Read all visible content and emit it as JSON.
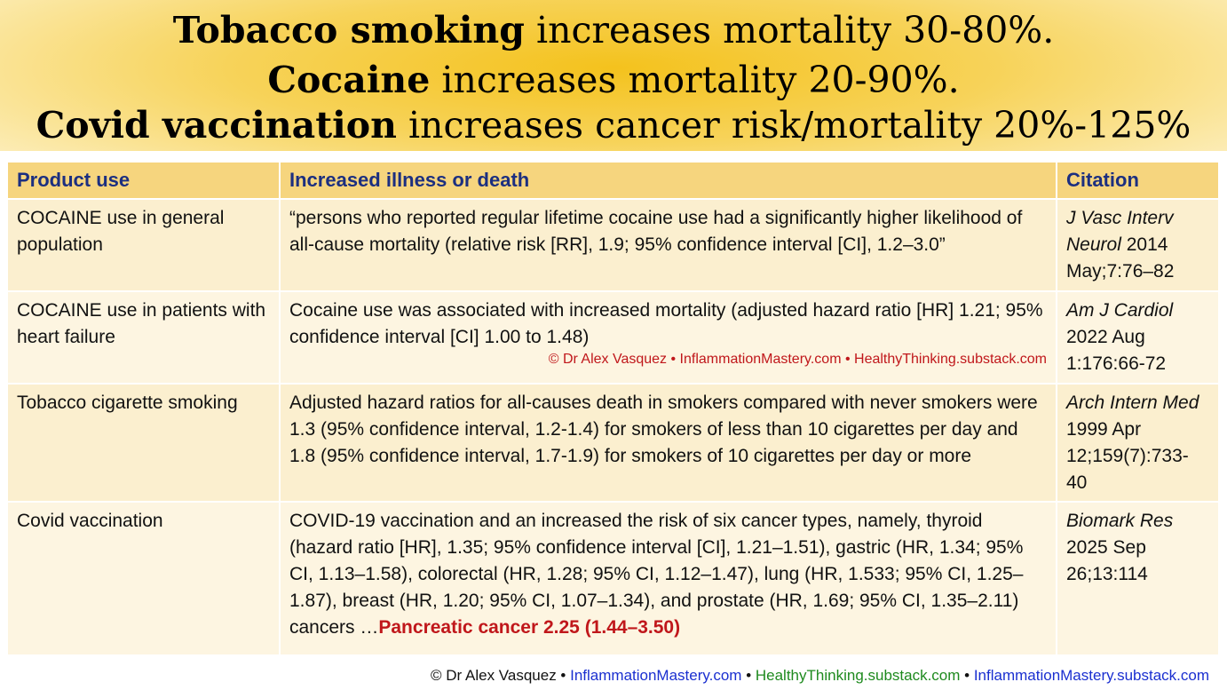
{
  "banner": {
    "l1_bold": "Tobacco smoking",
    "l1_rest": " increases mortality 30-80%.",
    "l2_bold": "Cocaine",
    "l2_rest": " increases mortality 20-90%.",
    "l3_bold": "Covid vaccination",
    "l3_rest": " increases cancer risk/mortality 20%-125%"
  },
  "table": {
    "headers": [
      "Product use",
      "Increased illness or death",
      "Citation"
    ],
    "rows": [
      {
        "product": "COCAINE use in general population",
        "effect": "“persons who reported regular lifetime cocaine use had a significantly higher likelihood of all-cause mortality (relative risk [RR], 1.9; 95% confidence interval [CI], 1.2–3.0”",
        "citation_italic": "J Vasc Interv Neurol",
        "citation_rest": " 2014 May;7:76–82"
      },
      {
        "product": "COCAINE use in patients with heart failure",
        "effect": "Cocaine use was associated with increased mortality (adjusted hazard ratio [HR] 1.21; 95% confidence interval [CI] 1.00 to 1.48)",
        "watermark": "© Dr Alex Vasquez • InflammationMastery.com • HealthyThinking.substack.com",
        "citation_italic": "Am J Cardiol",
        "citation_rest": " 2022 Aug 1:176:66-72"
      },
      {
        "product": "Tobacco cigarette smoking",
        "effect": "Adjusted hazard ratios for all-causes death in smokers compared with never smokers were 1.3 (95% confidence interval, 1.2-1.4) for smokers of less than 10 cigarettes per day and 1.8 (95% confidence interval, 1.7-1.9) for smokers of 10 cigarettes per day or more",
        "citation_italic": "Arch Intern Med",
        "citation_rest": " 1999 Apr 12;159(7):733-40"
      },
      {
        "product": "Covid vaccination",
        "effect": "COVID-19 vaccination and an increased the risk of six cancer types, namely, thyroid (hazard ratio [HR], 1.35; 95% confidence interval [CI], 1.21–1.51), gastric (HR, 1.34; 95% CI, 1.13–1.58), colorectal (HR, 1.28; 95% CI, 1.12–1.47), lung (HR, 1.533; 95% CI, 1.25–1.87), breast (HR, 1.20; 95% CI, 1.07–1.34), and prostate (HR, 1.69; 95% CI, 1.35–2.11) cancers …",
        "effect_highlight": "Pancreatic cancer 2.25 (1.44–3.50)",
        "citation_italic": "Biomark Res",
        "citation_rest": " 2025 Sep 26;13:114"
      }
    ]
  },
  "footer": {
    "author": "© Dr Alex Vasquez",
    "sep": " • ",
    "site1": "InflammationMastery.com",
    "site2": "HealthyThinking.substack.com",
    "site3": "InflammationMastery.substack.com"
  },
  "colors": {
    "banner": "#f4c21d",
    "header_row": "#f6d57e",
    "header_text": "#1c2f80",
    "highlight_red": "#c0171b"
  }
}
